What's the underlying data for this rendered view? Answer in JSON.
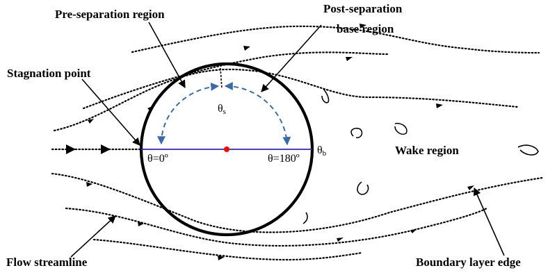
{
  "labels": {
    "pre_separation": "Pre-separation region",
    "post_separation_line1": "Post-separation",
    "post_separation_line2": "base region",
    "stagnation_point": "Stagnation point",
    "wake_region": "Wake region",
    "flow_streamline": "Flow streamline",
    "boundary_layer_edge": "Boundary layer edge"
  },
  "symbols": {
    "theta_s_base": "θ",
    "theta_s_sub": "s",
    "theta_b_base": "θ",
    "theta_b_sub": "b",
    "theta_zero": "θ=0º",
    "theta_180": "θ=180º"
  },
  "colors": {
    "cylinder": "#000000",
    "diameter_line": "#2a2ab8",
    "center_dot": "#ff0000",
    "angle_arcs": "#3a6aa8",
    "streamlines": "#000000"
  },
  "icons": {
    "center": "red-dot-icon",
    "arrows": "arrowhead-icon"
  }
}
